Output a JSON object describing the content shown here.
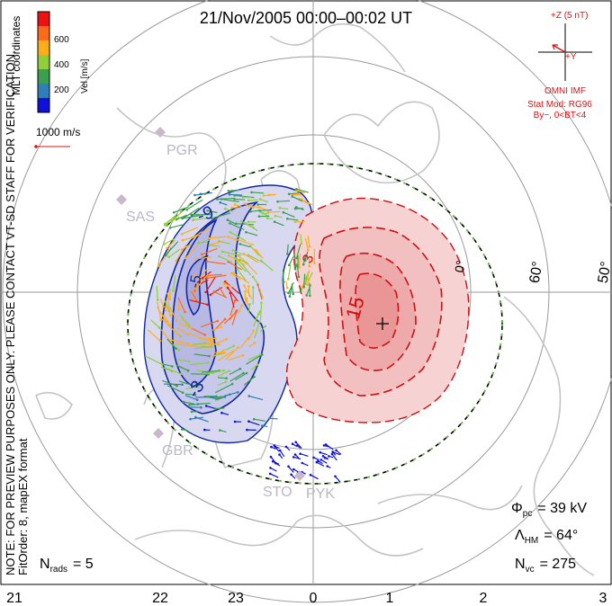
{
  "title": "21/Nov/2005 00:00–00:02 UT",
  "side_note": "NOTE: FOR PREVIEW PURPOSES ONLY. PLEASE CONTACT VT-SD STAFF FOR VERIFICATION.",
  "fit_order": "FitOrder: 8, mapEX format",
  "coords_label": "MLT coordinates",
  "colorbar": {
    "label": "Vel [m/s]",
    "ticks": [
      "200",
      "400",
      "600"
    ],
    "colors": [
      "#1010dd",
      "#2e7fb8",
      "#3aa050",
      "#8fd03a",
      "#ffae1a",
      "#ff6a1a",
      "#ee1111"
    ]
  },
  "vector_scale": {
    "label": "1000 m/s",
    "color": "#dd1111"
  },
  "imf": {
    "z_label": "+Z (5 nT)",
    "y_label": "+Y",
    "source": "OMNI IMF",
    "model": "Stat Mod: RG96",
    "condition": "By−, 0<BT<4",
    "color": "#dd1111"
  },
  "stations": [
    "PGR",
    "SAS",
    "GBR",
    "STO",
    "PYK"
  ],
  "lat_labels": [
    "60°",
    "50°"
  ],
  "zero_label": "0°",
  "contour_labels": [
    "-9",
    "-3",
    "3",
    "-5",
    "15"
  ],
  "stats": {
    "phi_pc_sym": "Φ",
    "phi_pc_sub": "pc",
    "phi_pc_value": "= 39 kV",
    "lambda_hm_sym": "Λ",
    "lambda_hm_sub": "HM",
    "lambda_hm_value": "= 64°",
    "n_vc_sym": "N",
    "n_vc_sub": "vc",
    "n_vc_value": "= 275",
    "n_rads_sym": "N",
    "n_rads_sub": "rads",
    "n_rads_value": "= 5"
  },
  "mlt_axis": [
    "21",
    "22",
    "23",
    "0",
    "1",
    "2",
    "3"
  ],
  "colors": {
    "negative_cell": "#d8d8f0",
    "negative_line": "#1028a0",
    "positive_cell": "#f6d2d2",
    "positive_line": "#cc1111",
    "land": "#c8c8c8"
  }
}
